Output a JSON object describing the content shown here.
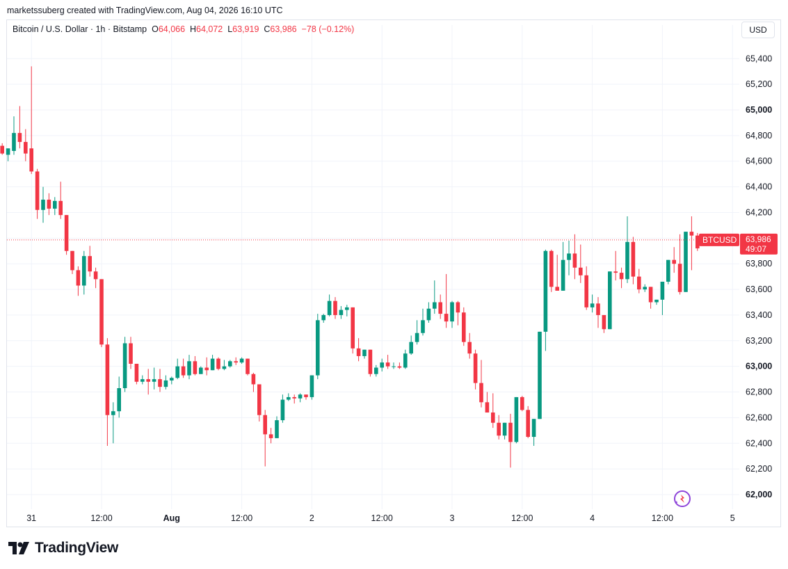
{
  "credit": "marketssuberg created with TradingView.com, Aug 04, 2026 16:10 UTC",
  "legend": {
    "symbol": "Bitcoin / U.S. Dollar · 1h · Bitstamp",
    "o_label": "O",
    "o_value": "64,066",
    "h_label": "H",
    "h_value": "64,072",
    "l_label": "L",
    "l_value": "63,919",
    "c_label": "C",
    "c_value": "63,986",
    "change": "−78 (−0.12%)"
  },
  "currency_button": "USD",
  "price_label": {
    "ticker": "BTCUSD",
    "price": "63,986",
    "countdown": "49:07"
  },
  "brand": "TradingView",
  "colors": {
    "up": "#089981",
    "down": "#f23645",
    "grid": "#f0f3fa",
    "text": "#131722"
  },
  "chart_data": {
    "type": "candlestick",
    "ylim": [
      61980,
      65600
    ],
    "y_ticks": [
      {
        "value": 62000,
        "label": "62,000",
        "major": true
      },
      {
        "value": 62200,
        "label": "62,200"
      },
      {
        "value": 62400,
        "label": "62,400"
      },
      {
        "value": 62600,
        "label": "62,600"
      },
      {
        "value": 62800,
        "label": "62,800"
      },
      {
        "value": 63000,
        "label": "63,000",
        "major": true
      },
      {
        "value": 63200,
        "label": "63,200"
      },
      {
        "value": 63400,
        "label": "63,400"
      },
      {
        "value": 63600,
        "label": "63,600"
      },
      {
        "value": 63800,
        "label": "63,800"
      },
      {
        "value": 64000,
        "label": "64,000",
        "major": true
      },
      {
        "value": 64200,
        "label": "64,200"
      },
      {
        "value": 64400,
        "label": "64,400"
      },
      {
        "value": 64600,
        "label": "64,600"
      },
      {
        "value": 64800,
        "label": "64,800"
      },
      {
        "value": 65000,
        "label": "65,000",
        "major": true
      },
      {
        "value": 65200,
        "label": "65,200"
      },
      {
        "value": 65400,
        "label": "65,400"
      }
    ],
    "x_ticks": [
      {
        "bar": 5,
        "label": "31"
      },
      {
        "bar": 17,
        "label": "12:00"
      },
      {
        "bar": 29,
        "label": "Aug",
        "major": true
      },
      {
        "bar": 41,
        "label": "12:00"
      },
      {
        "bar": 53,
        "label": "2"
      },
      {
        "bar": 65,
        "label": "12:00"
      },
      {
        "bar": 77,
        "label": "3"
      },
      {
        "bar": 89,
        "label": "12:00"
      },
      {
        "bar": 101,
        "label": "4"
      },
      {
        "bar": 113,
        "label": "12:00"
      },
      {
        "bar": 125,
        "label": "5"
      }
    ],
    "last_price": 63986,
    "candles": [
      [
        64720,
        64740,
        64660,
        64650
      ],
      [
        64650,
        64680,
        64700,
        64600
      ],
      [
        64680,
        64950,
        64820,
        64650
      ],
      [
        64820,
        65030,
        64750,
        64700
      ],
      [
        64750,
        64850,
        64660,
        64600
      ],
      [
        64700,
        65340,
        64520,
        64500
      ],
      [
        64520,
        64540,
        64220,
        64150
      ],
      [
        64220,
        64400,
        64300,
        64120
      ],
      [
        64300,
        64350,
        64230,
        64180
      ],
      [
        64230,
        64320,
        64290,
        64180
      ],
      [
        64290,
        64440,
        64180,
        64150
      ],
      [
        64180,
        64180,
        63900,
        63870
      ],
      [
        63900,
        63900,
        63750,
        63720
      ],
      [
        63750,
        63780,
        63630,
        63550
      ],
      [
        63630,
        63900,
        63860,
        63560
      ],
      [
        63860,
        63940,
        63740,
        63700
      ],
      [
        63740,
        63770,
        63680,
        63610
      ],
      [
        63680,
        63680,
        63170,
        63150
      ],
      [
        63170,
        63220,
        62620,
        62380
      ],
      [
        62620,
        62720,
        62650,
        62400
      ],
      [
        62650,
        62920,
        62830,
        62600
      ],
      [
        62830,
        63230,
        63180,
        62800
      ],
      [
        63180,
        63230,
        63020,
        62980
      ],
      [
        63020,
        63000,
        62880,
        62860
      ],
      [
        62880,
        62930,
        62900,
        62860
      ],
      [
        62900,
        62980,
        62880,
        62780
      ],
      [
        62880,
        62990,
        62900,
        62820
      ],
      [
        62900,
        62980,
        62840,
        62800
      ],
      [
        62840,
        62930,
        62890,
        62820
      ],
      [
        62890,
        62920,
        62910,
        62860
      ],
      [
        62910,
        63060,
        63000,
        62900
      ],
      [
        63000,
        63060,
        62930,
        62910
      ],
      [
        62930,
        63090,
        63040,
        62900
      ],
      [
        63040,
        63080,
        62940,
        62930
      ],
      [
        62940,
        63000,
        62990,
        62940
      ],
      [
        62990,
        63070,
        62970,
        62930
      ],
      [
        62970,
        63090,
        63060,
        62990
      ],
      [
        63060,
        63070,
        62980,
        62970
      ],
      [
        62980,
        63050,
        63000,
        62970
      ],
      [
        63000,
        63050,
        63040,
        62990
      ],
      [
        63040,
        63070,
        63030,
        63010
      ],
      [
        63030,
        63070,
        63060,
        63020
      ],
      [
        63060,
        63060,
        62940,
        62930
      ],
      [
        62940,
        62950,
        62860,
        62800
      ],
      [
        62860,
        62860,
        62620,
        62570
      ],
      [
        62620,
        62660,
        62470,
        62220
      ],
      [
        62470,
        62520,
        62440,
        62400
      ],
      [
        62440,
        62610,
        62580,
        62450
      ],
      [
        62580,
        62780,
        62740,
        62560
      ],
      [
        62740,
        62790,
        62760,
        62730
      ],
      [
        62760,
        62780,
        62750,
        62710
      ],
      [
        62750,
        62790,
        62780,
        62720
      ],
      [
        62780,
        62760,
        62760,
        62740
      ],
      [
        62760,
        62820,
        62930,
        62740
      ],
      [
        62930,
        63410,
        63360,
        62900
      ],
      [
        63360,
        63410,
        63400,
        63340
      ],
      [
        63400,
        63560,
        63510,
        63390
      ],
      [
        63510,
        63540,
        63400,
        63370
      ],
      [
        63400,
        63470,
        63440,
        63370
      ],
      [
        63440,
        63480,
        63460,
        63390
      ],
      [
        63460,
        63460,
        63140,
        63100
      ],
      [
        63140,
        63220,
        63080,
        63040
      ],
      [
        63080,
        63080,
        63130,
        63060
      ],
      [
        63130,
        63130,
        62940,
        62920
      ],
      [
        62940,
        63010,
        62990,
        62920
      ],
      [
        62990,
        63060,
        63030,
        62960
      ],
      [
        63030,
        63090,
        63000,
        62980
      ],
      [
        63000,
        63030,
        63000,
        62980
      ],
      [
        63000,
        63030,
        62990,
        62980
      ],
      [
        62990,
        63130,
        63100,
        62980
      ],
      [
        63100,
        63240,
        63190,
        63090
      ],
      [
        63190,
        63360,
        63260,
        63170
      ],
      [
        63260,
        63450,
        63360,
        63240
      ],
      [
        63360,
        63500,
        63450,
        63340
      ],
      [
        63450,
        63670,
        63500,
        63410
      ],
      [
        63500,
        63560,
        63410,
        63370
      ],
      [
        63410,
        63720,
        63350,
        63300
      ],
      [
        63350,
        63510,
        63500,
        63300
      ],
      [
        63500,
        63510,
        63420,
        63320
      ],
      [
        63420,
        63460,
        63190,
        63160
      ],
      [
        63190,
        63260,
        63100,
        63060
      ],
      [
        63100,
        63130,
        62870,
        62820
      ],
      [
        62870,
        63050,
        62720,
        62680
      ],
      [
        62720,
        62800,
        62640,
        62650
      ],
      [
        62640,
        62790,
        62560,
        62520
      ],
      [
        62560,
        62620,
        62460,
        62430
      ],
      [
        62460,
        62520,
        62560,
        62430
      ],
      [
        62560,
        62630,
        62410,
        62210
      ],
      [
        62410,
        62730,
        62760,
        62400
      ],
      [
        62760,
        62770,
        62660,
        62650
      ],
      [
        62660,
        62690,
        62450,
        62440
      ],
      [
        62450,
        62540,
        62590,
        62380
      ],
      [
        62590,
        63030,
        63270,
        62590
      ],
      [
        63270,
        63910,
        63900,
        63120
      ],
      [
        63900,
        63910,
        63620,
        63580
      ],
      [
        63620,
        63870,
        63590,
        63600
      ],
      [
        63590,
        63970,
        63830,
        63600
      ],
      [
        63830,
        63980,
        63880,
        63710
      ],
      [
        63880,
        64030,
        63770,
        63680
      ],
      [
        63770,
        63950,
        63710,
        63650
      ],
      [
        63710,
        63780,
        63460,
        63440
      ],
      [
        63460,
        63560,
        63490,
        63420
      ],
      [
        63490,
        63540,
        63400,
        63300
      ],
      [
        63400,
        63400,
        63290,
        63260
      ],
      [
        63290,
        63570,
        63740,
        63290
      ],
      [
        63740,
        63900,
        63730,
        63670
      ],
      [
        63730,
        63770,
        63680,
        63610
      ],
      [
        63680,
        64170,
        63970,
        63650
      ],
      [
        63970,
        64010,
        63700,
        63640
      ],
      [
        63700,
        63760,
        63600,
        63570
      ],
      [
        63600,
        63640,
        63620,
        63580
      ],
      [
        63620,
        63620,
        63500,
        63450
      ],
      [
        63500,
        63490,
        63520,
        63480
      ],
      [
        63520,
        63620,
        63660,
        63400
      ],
      [
        63660,
        63800,
        63830,
        63640
      ],
      [
        63830,
        63930,
        63800,
        63730
      ],
      [
        63800,
        64030,
        63580,
        63560
      ],
      [
        63580,
        63550,
        64050,
        63590
      ],
      [
        64050,
        64170,
        64020,
        63750
      ],
      [
        64020,
        64040,
        63920,
        63900
      ]
    ]
  }
}
